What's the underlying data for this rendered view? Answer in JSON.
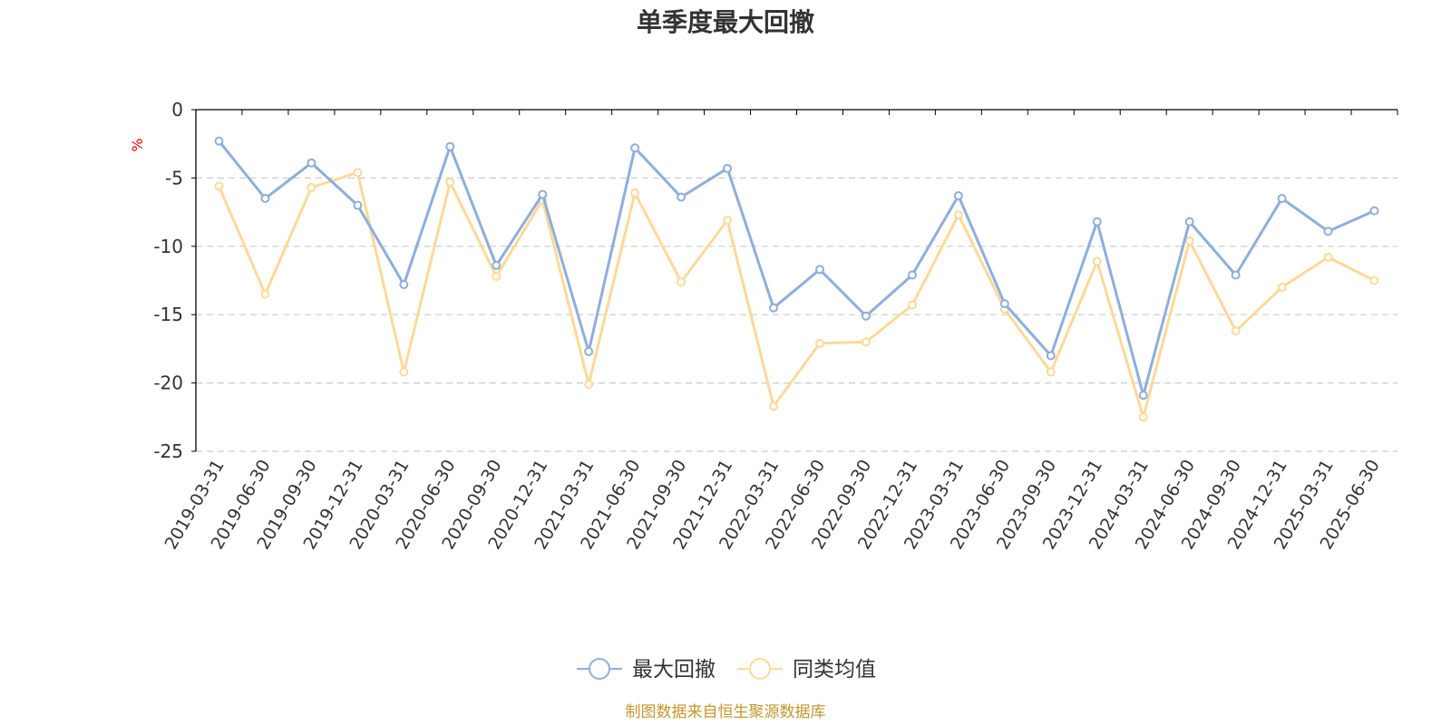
{
  "colors": {
    "series1": "#8eaedb",
    "series2": "#fdd998",
    "unit": "#ff0000",
    "source": "#c5972b",
    "axis": "#000000",
    "grid": "#cccccc"
  },
  "chart_data": {
    "type": "line",
    "title": "单季度最大回撤",
    "ylabel": "%",
    "xlabel": "",
    "ylim": [
      -25,
      0
    ],
    "yticks": [
      0,
      -5,
      -10,
      -15,
      -20,
      -25
    ],
    "grid": true,
    "legend_position": "bottom-center",
    "categories": [
      "2019-03-31",
      "2019-06-30",
      "2019-09-30",
      "2019-12-31",
      "2020-03-31",
      "2020-06-30",
      "2020-09-30",
      "2020-12-31",
      "2021-03-31",
      "2021-06-30",
      "2021-09-30",
      "2021-12-31",
      "2022-03-31",
      "2022-06-30",
      "2022-09-30",
      "2022-12-31",
      "2023-03-31",
      "2023-06-30",
      "2023-09-30",
      "2023-12-31",
      "2024-03-31",
      "2024-06-30",
      "2024-09-30",
      "2024-12-31",
      "2025-03-31",
      "2025-06-30"
    ],
    "series": [
      {
        "name": "最大回撤",
        "values": [
          -2.3,
          -6.5,
          -3.9,
          -7.0,
          -12.8,
          -2.7,
          -11.4,
          -6.2,
          -17.7,
          -2.8,
          -6.4,
          -4.3,
          -14.5,
          -11.7,
          -15.1,
          -12.1,
          -6.3,
          -14.2,
          -18.0,
          -8.2,
          -20.9,
          -8.2,
          -12.1,
          -6.5,
          -8.9,
          -7.4
        ]
      },
      {
        "name": "同类均值",
        "values": [
          -5.6,
          -13.5,
          -5.7,
          -4.6,
          -19.2,
          -5.3,
          -12.2,
          -6.6,
          -20.1,
          -6.1,
          -12.6,
          -8.1,
          -21.7,
          -17.1,
          -17.0,
          -14.3,
          -7.7,
          -14.6,
          -19.2,
          -11.1,
          -22.5,
          -9.6,
          -16.2,
          -13.0,
          -10.8,
          -12.5
        ]
      }
    ]
  },
  "footer": {
    "source": "制图数据来自恒生聚源数据库"
  }
}
